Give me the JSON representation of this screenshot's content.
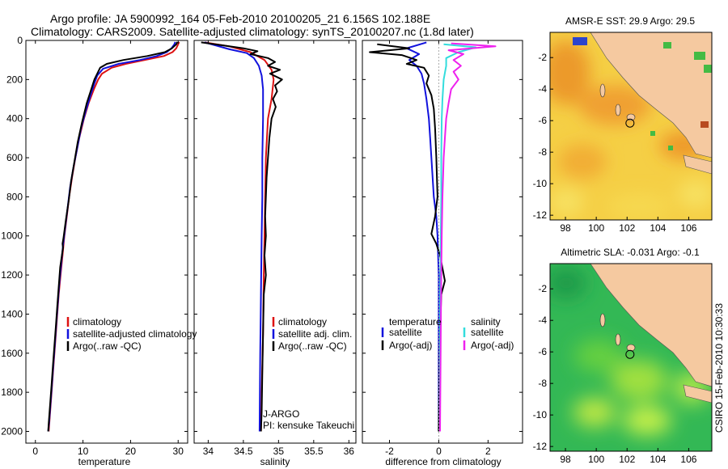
{
  "header": {
    "title_line1": "Argo profile: JA 5900992_164 05-Feb-2010 20100205_21 6.156S 102.188E",
    "title_line2": "Climatology: CARS2009. Satellite-adjusted climatology: synTS_20100207.nc (1.8d later)"
  },
  "side_stamp": "CSIRO 15-Feb-2010 10:30:33",
  "colors": {
    "climatology": "#dd1111",
    "satellite": "#1111dd",
    "argo": "#000000",
    "salinity_satellite": "#33dddd",
    "salinity_argo": "#ee22ee",
    "land": "#f5c9a0",
    "sst_warm": "#f0a030",
    "sst_mid": "#f7d84a",
    "sla_green": "#33c050",
    "sla_light": "#c8f040"
  },
  "credits": {
    "line1": "J-ARGO",
    "line2": "PI: kensuke Takeuchi"
  },
  "chart_data": [
    {
      "type": "line",
      "id": "temperature",
      "xlabel": "temperature",
      "ylabel": "",
      "xlim": [
        -2,
        32
      ],
      "ylim": [
        2060,
        0
      ],
      "xticks": [
        0,
        10,
        20,
        30
      ],
      "yticks": [
        0,
        200,
        400,
        600,
        800,
        1000,
        1200,
        1400,
        1600,
        1800,
        2000
      ],
      "legend": {
        "position": "lower-right",
        "entries": [
          "climatology",
          "satellite-adjusted climatology",
          "Argo(..raw -QC)"
        ]
      },
      "series": [
        {
          "name": "climatology",
          "color": "#dd1111",
          "points": [
            [
              30.2,
              8
            ],
            [
              30.0,
              20
            ],
            [
              29.6,
              40
            ],
            [
              28.8,
              60
            ],
            [
              27,
              80
            ],
            [
              23,
              100
            ],
            [
              19,
              120
            ],
            [
              16,
              140
            ],
            [
              14,
              170
            ],
            [
              13.2,
              200
            ],
            [
              12.3,
              250
            ],
            [
              11.2,
              320
            ],
            [
              10.2,
              400
            ],
            [
              9.2,
              500
            ],
            [
              8.4,
              600
            ],
            [
              7.7,
              700
            ],
            [
              7.1,
              800
            ],
            [
              6.6,
              900
            ],
            [
              6.1,
              1000
            ],
            [
              5.7,
              1100
            ],
            [
              5.3,
              1200
            ],
            [
              4.9,
              1300
            ],
            [
              4.6,
              1400
            ],
            [
              4.3,
              1500
            ],
            [
              4.0,
              1600
            ],
            [
              3.7,
              1700
            ],
            [
              3.4,
              1800
            ],
            [
              3.1,
              1900
            ],
            [
              2.8,
              2000
            ]
          ]
        },
        {
          "name": "satellite-adjusted climatology",
          "color": "#1111dd",
          "points": [
            [
              29.4,
              8
            ],
            [
              29.2,
              20
            ],
            [
              28.6,
              40
            ],
            [
              27.6,
              60
            ],
            [
              25.5,
              80
            ],
            [
              22,
              100
            ],
            [
              17.5,
              120
            ],
            [
              14.2,
              145
            ],
            [
              13,
              180
            ],
            [
              12.4,
              220
            ],
            [
              11.6,
              280
            ],
            [
              10.6,
              360
            ],
            [
              9.6,
              450
            ],
            [
              8.8,
              550
            ],
            [
              8.0,
              650
            ],
            [
              7.3,
              750
            ],
            [
              6.8,
              850
            ],
            [
              6.3,
              950
            ],
            [
              5.8,
              1050
            ],
            [
              5.4,
              1150
            ],
            [
              5.0,
              1250
            ],
            [
              4.7,
              1350
            ],
            [
              4.4,
              1450
            ],
            [
              4.1,
              1550
            ],
            [
              3.8,
              1650
            ],
            [
              3.5,
              1750
            ],
            [
              3.2,
              1850
            ],
            [
              2.9,
              1950
            ],
            [
              2.7,
              2000
            ]
          ]
        },
        {
          "name": "Argo(..raw -QC)",
          "color": "#000000",
          "points": [
            [
              29.8,
              8
            ],
            [
              29.6,
              20
            ],
            [
              28.7,
              40
            ],
            [
              27.2,
              60
            ],
            [
              23.5,
              80
            ],
            [
              18.5,
              100
            ],
            [
              15,
              120
            ],
            [
              13.6,
              140
            ],
            [
              13.2,
              160
            ],
            [
              12.4,
              200
            ],
            [
              11.6,
              260
            ],
            [
              10.8,
              320
            ],
            [
              9.8,
              420
            ],
            [
              8.9,
              520
            ],
            [
              8.2,
              620
            ],
            [
              7.5,
              720
            ],
            [
              7.0,
              820
            ],
            [
              6.4,
              920
            ],
            [
              5.9,
              1010
            ],
            [
              5.7,
              1040
            ],
            [
              5.8,
              1060
            ],
            [
              5.2,
              1160
            ],
            [
              4.9,
              1260
            ],
            [
              4.6,
              1360
            ],
            [
              4.3,
              1460
            ],
            [
              4.0,
              1560
            ],
            [
              3.7,
              1660
            ],
            [
              3.4,
              1760
            ],
            [
              3.1,
              1860
            ],
            [
              2.8,
              1960
            ],
            [
              2.7,
              2000
            ]
          ]
        }
      ]
    },
    {
      "type": "line",
      "id": "salinity",
      "xlabel": "salinity",
      "ylabel": "",
      "xlim": [
        33.8,
        36.1
      ],
      "ylim": [
        2060,
        0
      ],
      "xticks": [
        34,
        34.5,
        35,
        35.5,
        36
      ],
      "xtick_labels": [
        "34",
        "34.5",
        "35",
        "35.5",
        "36"
      ],
      "legend": {
        "position": "lower-right",
        "entries": [
          "climatology",
          "satellite adj. clim.",
          "Argo(..raw -QC)"
        ]
      },
      "series": [
        {
          "name": "climatology",
          "color": "#dd1111",
          "points": [
            [
              33.95,
              10
            ],
            [
              34.3,
              30
            ],
            [
              34.6,
              60
            ],
            [
              34.8,
              100
            ],
            [
              34.9,
              150
            ],
            [
              34.93,
              200
            ],
            [
              34.9,
              300
            ],
            [
              34.85,
              400
            ],
            [
              34.82,
              600
            ],
            [
              34.81,
              800
            ],
            [
              34.8,
              1000
            ],
            [
              34.79,
              1200
            ],
            [
              34.78,
              1500
            ],
            [
              34.76,
              1800
            ],
            [
              34.75,
              2000
            ]
          ]
        },
        {
          "name": "satellite adj. clim.",
          "color": "#1111dd",
          "points": [
            [
              33.95,
              10
            ],
            [
              34.1,
              25
            ],
            [
              34.3,
              45
            ],
            [
              34.55,
              65
            ],
            [
              34.65,
              90
            ],
            [
              34.72,
              130
            ],
            [
              34.76,
              180
            ],
            [
              34.78,
              250
            ],
            [
              34.78,
              400
            ],
            [
              34.77,
              600
            ],
            [
              34.77,
              800
            ],
            [
              34.76,
              1000
            ],
            [
              34.75,
              1300
            ],
            [
              34.74,
              1600
            ],
            [
              34.73,
              2000
            ]
          ]
        },
        {
          "name": "Argo(..raw -QC)",
          "color": "#000000",
          "points": [
            [
              33.9,
              10
            ],
            [
              34.2,
              25
            ],
            [
              34.5,
              40
            ],
            [
              34.7,
              55
            ],
            [
              34.6,
              70
            ],
            [
              34.85,
              90
            ],
            [
              34.95,
              110
            ],
            [
              34.85,
              130
            ],
            [
              35.02,
              150
            ],
            [
              34.88,
              170
            ],
            [
              35.05,
              200
            ],
            [
              34.95,
              230
            ],
            [
              34.98,
              260
            ],
            [
              34.92,
              300
            ],
            [
              34.96,
              340
            ],
            [
              34.9,
              400
            ],
            [
              34.87,
              500
            ],
            [
              34.85,
              600
            ],
            [
              34.83,
              700
            ],
            [
              34.82,
              800
            ],
            [
              34.81,
              900
            ],
            [
              34.82,
              1000
            ],
            [
              34.8,
              1100
            ],
            [
              34.82,
              1200
            ],
            [
              34.79,
              1300
            ],
            [
              34.78,
              1500
            ],
            [
              34.77,
              1700
            ],
            [
              34.76,
              1900
            ],
            [
              34.75,
              2000
            ]
          ]
        }
      ]
    },
    {
      "type": "line",
      "id": "difference",
      "xlabel": "difference from climatology",
      "ylabel": "",
      "xlim": [
        -3.1,
        3.4
      ],
      "ylim": [
        2060,
        0
      ],
      "xticks": [
        -2,
        0,
        2
      ],
      "legend": {
        "position": "lower-center",
        "groups": [
          {
            "title": "temperature",
            "entries": [
              "satellite",
              "Argo(-adj)"
            ]
          },
          {
            "title": "salinity",
            "entries": [
              "satellite",
              "Argo(-adj)"
            ]
          }
        ]
      },
      "series": [
        {
          "name": "temperature satellite",
          "color": "#1111dd",
          "points": [
            [
              -0.5,
              10
            ],
            [
              -1.3,
              40
            ],
            [
              -0.8,
              70
            ],
            [
              -1.2,
              100
            ],
            [
              -0.9,
              130
            ],
            [
              -0.7,
              170
            ],
            [
              -0.6,
              220
            ],
            [
              -0.5,
              300
            ],
            [
              -0.4,
              400
            ],
            [
              -0.35,
              500
            ],
            [
              -0.3,
              600
            ],
            [
              -0.25,
              700
            ],
            [
              -0.2,
              800
            ],
            [
              -0.1,
              900
            ],
            [
              -0.05,
              1000
            ],
            [
              0,
              1200
            ],
            [
              0,
              1500
            ],
            [
              0,
              2000
            ]
          ]
        },
        {
          "name": "Argo(-adj) temperature",
          "color": "#000000",
          "points": [
            [
              -2.5,
              20
            ],
            [
              -1.2,
              40
            ],
            [
              -2.8,
              60
            ],
            [
              -1.5,
              75
            ],
            [
              -0.9,
              100
            ],
            [
              -1.3,
              120
            ],
            [
              -0.6,
              140
            ],
            [
              -0.4,
              180
            ],
            [
              -0.5,
              220
            ],
            [
              -0.3,
              280
            ],
            [
              -0.2,
              350
            ],
            [
              -0.15,
              450
            ],
            [
              -0.1,
              600
            ],
            [
              -0.05,
              800
            ],
            [
              -0.15,
              900
            ],
            [
              -0.3,
              990
            ],
            [
              -0.1,
              1040
            ],
            [
              0.05,
              1100
            ],
            [
              0.25,
              1230
            ],
            [
              0.1,
              1300
            ],
            [
              0.05,
              1500
            ],
            [
              0,
              2000
            ]
          ]
        },
        {
          "name": "salinity satellite",
          "color": "#33dddd",
          "points": [
            [
              0.2,
              20
            ],
            [
              1.5,
              35
            ],
            [
              0.8,
              60
            ],
            [
              0.3,
              90
            ],
            [
              0.3,
              130
            ],
            [
              0.2,
              200
            ],
            [
              0.15,
              300
            ],
            [
              0.12,
              400
            ],
            [
              0.1,
              600
            ],
            [
              0.1,
              800
            ],
            [
              0.08,
              1000
            ],
            [
              0.06,
              1300
            ],
            [
              0.05,
              1600
            ],
            [
              0.05,
              2000
            ]
          ]
        },
        {
          "name": "Argo(-adj) salinity",
          "color": "#ee22ee",
          "points": [
            [
              0.5,
              15
            ],
            [
              2.3,
              30
            ],
            [
              0.4,
              50
            ],
            [
              1.0,
              70
            ],
            [
              0.6,
              100
            ],
            [
              0.9,
              130
            ],
            [
              0.6,
              160
            ],
            [
              0.8,
              200
            ],
            [
              0.5,
              250
            ],
            [
              0.4,
              320
            ],
            [
              0.3,
              400
            ],
            [
              0.25,
              500
            ],
            [
              0.2,
              600
            ],
            [
              0.15,
              800
            ],
            [
              0.12,
              1000
            ],
            [
              0.1,
              1200
            ],
            [
              0.08,
              1500
            ],
            [
              0.05,
              2000
            ]
          ]
        }
      ]
    },
    {
      "type": "heatmap",
      "id": "sst_map",
      "title": "AMSR-E SST: 29.9 Argo: 29.5",
      "xlim": [
        97,
        107.5
      ],
      "ylim": [
        -12.3,
        -0.4
      ],
      "xticks": [
        98,
        100,
        102,
        104,
        106
      ],
      "yticks": [
        -2,
        -4,
        -6,
        -8,
        -10,
        -12
      ],
      "argo_position": [
        102.188,
        -6.156
      ]
    },
    {
      "type": "heatmap",
      "id": "sla_map",
      "title": "Altimetric SLA: -0.031 Argo: -0.1",
      "xlim": [
        97,
        107.5
      ],
      "ylim": [
        -12.3,
        -0.4
      ],
      "xticks": [
        98,
        100,
        102,
        104,
        106
      ],
      "yticks": [
        -2,
        -4,
        -6,
        -8,
        -10,
        -12
      ],
      "argo_position": [
        102.188,
        -6.156
      ]
    }
  ]
}
